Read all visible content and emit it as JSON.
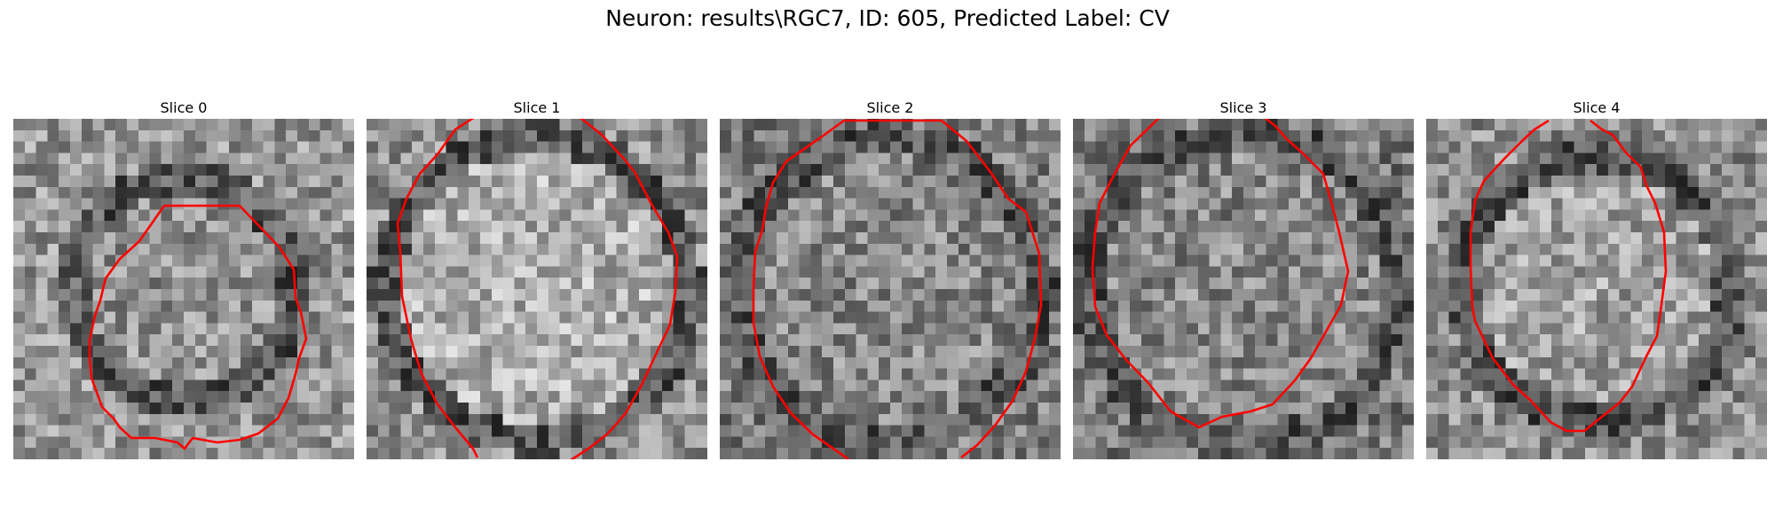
{
  "figure": {
    "suptitle": "Neuron: results\\RGC7, ID: 605, Predicted Label: CV"
  },
  "style": {
    "contour_color": "#ff0000"
  },
  "panels": [
    {
      "title": "Slice 0"
    },
    {
      "title": "Slice 1"
    },
    {
      "title": "Slice 2"
    },
    {
      "title": "Slice 3"
    },
    {
      "title": "Slice 4"
    }
  ]
}
